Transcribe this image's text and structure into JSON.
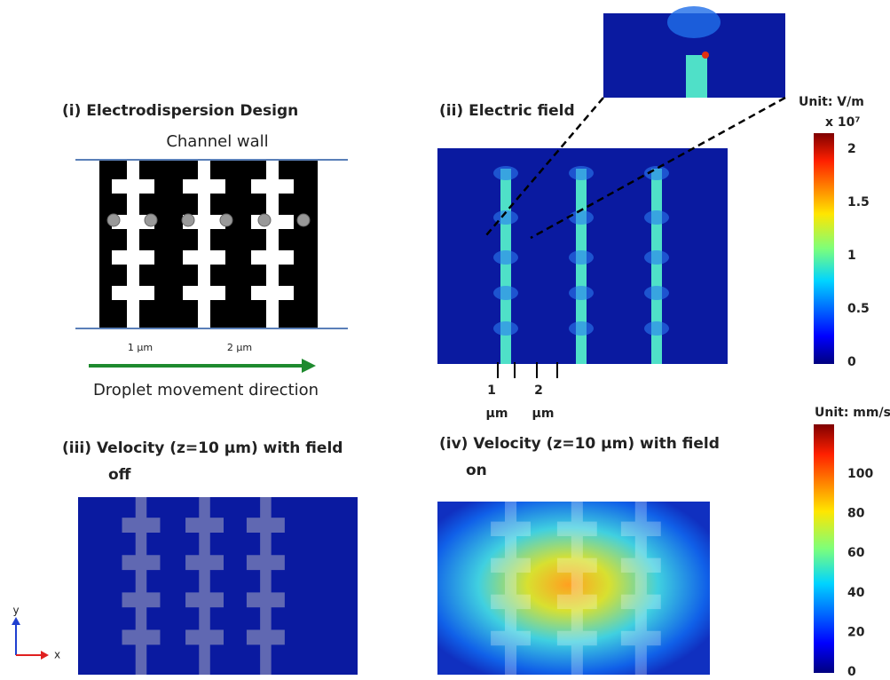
{
  "panel_i": {
    "title": "(i) Electrodispersion Design",
    "wall": "Channel wall",
    "gap1": "1 µm",
    "gap2": "2 µm",
    "direction": "Droplet movement direction"
  },
  "panel_ii": {
    "title": "(ii) Electric field",
    "gap1_num": "1",
    "gap1_unit": "µm",
    "gap2_num": "2",
    "gap2_unit": "µm"
  },
  "colorbar_field": {
    "unit": "Unit: V/m",
    "scale": "x 10⁷",
    "ticks": [
      2,
      1.5,
      1,
      0.5,
      0
    ]
  },
  "panel_iii": {
    "title": "(iii) Velocity (z=10 µm) with field",
    "title_cont": "off"
  },
  "panel_iv": {
    "title": "(iv) Velocity (z=10 µm) with field",
    "title_cont": "on"
  },
  "colorbar_velocity": {
    "unit": "Unit: mm/s",
    "ticks": [
      100,
      80,
      60,
      40,
      20,
      0
    ]
  },
  "axes": {
    "y": "y",
    "x": "x"
  }
}
